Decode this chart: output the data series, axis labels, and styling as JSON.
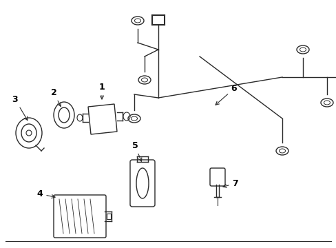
{
  "background_color": "#ffffff",
  "line_color": "#2a2a2a",
  "label_color": "#000000",
  "figsize": [
    4.89,
    3.6
  ],
  "dpi": 100,
  "border_bottom": true,
  "lw": 1.0
}
